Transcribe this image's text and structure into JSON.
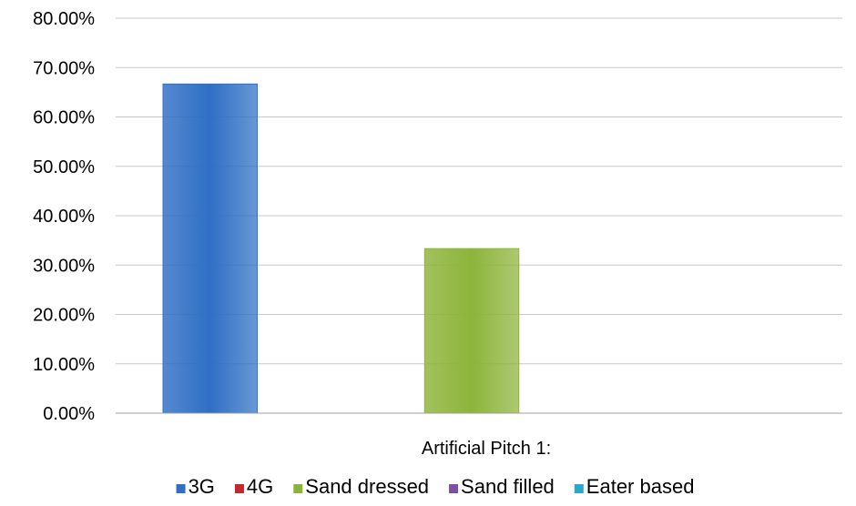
{
  "chart_data": {
    "type": "bar",
    "categories": [
      "Artificial Pitch 1:"
    ],
    "series": [
      {
        "name": "3G",
        "values": [
          0.6667
        ],
        "color": "#2f6fc4"
      },
      {
        "name": "4G",
        "values": [
          0
        ],
        "color": "#c0282a"
      },
      {
        "name": "Sand dressed",
        "values": [
          0.3333
        ],
        "color": "#8db43a"
      },
      {
        "name": "Sand filled",
        "values": [
          0
        ],
        "color": "#7a4fa6"
      },
      {
        "name": "Eater based",
        "values": [
          0
        ],
        "color": "#2aa7c9"
      }
    ],
    "ylim": [
      0,
      0.8
    ],
    "yticks": [
      "0.00%",
      "10.00%",
      "20.00%",
      "30.00%",
      "40.00%",
      "50.00%",
      "60.00%",
      "70.00%",
      "80.00%"
    ],
    "grid": true,
    "legend_position": "bottom",
    "title": "",
    "xlabel": "",
    "ylabel": ""
  }
}
